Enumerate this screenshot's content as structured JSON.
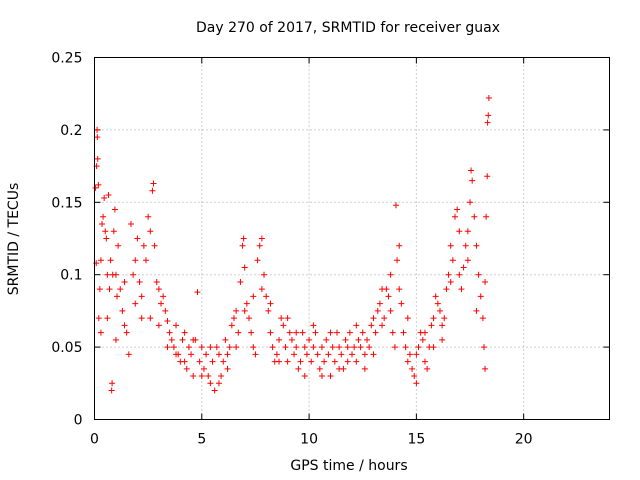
{
  "chart_data": {
    "type": "scatter",
    "title": "Day 270 of 2017, SRMTID for receiver guax",
    "xlabel": "GPS time / hours",
    "ylabel": "SRMTID / TECUs",
    "xlim": [
      0,
      24
    ],
    "ylim": [
      0,
      0.25
    ],
    "x_ticks": [
      0,
      5,
      10,
      15,
      20
    ],
    "x_tick_labels": [
      "0",
      "5",
      "10",
      "15",
      "20"
    ],
    "y_ticks": [
      0,
      0.05,
      0.1,
      0.15,
      0.2,
      0.25
    ],
    "y_tick_labels": [
      "0",
      "0.05",
      "0.1",
      "0.15",
      "0.2",
      "0.25"
    ],
    "grid": true,
    "marker": "+",
    "color": "#ff0000",
    "series": [
      {
        "name": "SRMTID",
        "points": [
          [
            0.05,
            0.16
          ],
          [
            0.08,
            0.108
          ],
          [
            0.1,
            0.175
          ],
          [
            0.12,
            0.2
          ],
          [
            0.13,
            0.195
          ],
          [
            0.15,
            0.18
          ],
          [
            0.18,
            0.162
          ],
          [
            0.2,
            0.07
          ],
          [
            0.25,
            0.09
          ],
          [
            0.3,
            0.11
          ],
          [
            0.35,
            0.135
          ],
          [
            0.4,
            0.14
          ],
          [
            0.45,
            0.153
          ],
          [
            0.5,
            0.13
          ],
          [
            0.55,
            0.125
          ],
          [
            0.6,
            0.1
          ],
          [
            0.65,
            0.155
          ],
          [
            0.7,
            0.09
          ],
          [
            0.75,
            0.11
          ],
          [
            0.8,
            0.02
          ],
          [
            0.82,
            0.025
          ],
          [
            0.85,
            0.1
          ],
          [
            0.9,
            0.13
          ],
          [
            0.95,
            0.145
          ],
          [
            1.0,
            0.1
          ],
          [
            1.05,
            0.085
          ],
          [
            1.1,
            0.12
          ],
          [
            1.2,
            0.09
          ],
          [
            1.3,
            0.075
          ],
          [
            1.4,
            0.095
          ],
          [
            1.5,
            0.06
          ],
          [
            1.6,
            0.045
          ],
          [
            1.7,
            0.135
          ],
          [
            1.8,
            0.1
          ],
          [
            1.9,
            0.11
          ],
          [
            2.0,
            0.125
          ],
          [
            2.1,
            0.095
          ],
          [
            2.2,
            0.085
          ],
          [
            2.3,
            0.12
          ],
          [
            2.4,
            0.11
          ],
          [
            2.5,
            0.14
          ],
          [
            2.6,
            0.13
          ],
          [
            2.7,
            0.158
          ],
          [
            2.75,
            0.163
          ],
          [
            2.8,
            0.12
          ],
          [
            2.9,
            0.095
          ],
          [
            3.0,
            0.09
          ],
          [
            3.1,
            0.08
          ],
          [
            3.2,
            0.085
          ],
          [
            3.3,
            0.075
          ],
          [
            3.4,
            0.068
          ],
          [
            3.5,
            0.06
          ],
          [
            3.6,
            0.055
          ],
          [
            3.7,
            0.05
          ],
          [
            3.8,
            0.065
          ],
          [
            3.9,
            0.045
          ],
          [
            4.0,
            0.04
          ],
          [
            4.1,
            0.055
          ],
          [
            4.2,
            0.06
          ],
          [
            4.3,
            0.035
          ],
          [
            4.4,
            0.05
          ],
          [
            4.5,
            0.045
          ],
          [
            4.6,
            0.03
          ],
          [
            4.7,
            0.055
          ],
          [
            4.8,
            0.088
          ],
          [
            4.9,
            0.04
          ],
          [
            5.0,
            0.05
          ],
          [
            5.1,
            0.035
          ],
          [
            5.2,
            0.045
          ],
          [
            5.3,
            0.03
          ],
          [
            5.4,
            0.025
          ],
          [
            5.5,
            0.04
          ],
          [
            5.6,
            0.02
          ],
          [
            5.7,
            0.05
          ],
          [
            5.8,
            0.045
          ],
          [
            5.9,
            0.03
          ],
          [
            6.0,
            0.04
          ],
          [
            6.1,
            0.055
          ],
          [
            6.2,
            0.035
          ],
          [
            6.3,
            0.05
          ],
          [
            6.4,
            0.065
          ],
          [
            6.5,
            0.07
          ],
          [
            6.6,
            0.075
          ],
          [
            6.7,
            0.06
          ],
          [
            6.8,
            0.095
          ],
          [
            6.9,
            0.12
          ],
          [
            6.95,
            0.125
          ],
          [
            7.0,
            0.105
          ],
          [
            7.1,
            0.08
          ],
          [
            7.2,
            0.07
          ],
          [
            7.3,
            0.06
          ],
          [
            7.4,
            0.05
          ],
          [
            7.5,
            0.045
          ],
          [
            7.6,
            0.11
          ],
          [
            7.7,
            0.12
          ],
          [
            7.8,
            0.125
          ],
          [
            7.9,
            0.1
          ],
          [
            8.0,
            0.085
          ],
          [
            8.1,
            0.075
          ],
          [
            8.2,
            0.06
          ],
          [
            8.3,
            0.05
          ],
          [
            8.4,
            0.04
          ],
          [
            8.5,
            0.045
          ],
          [
            8.6,
            0.055
          ],
          [
            8.7,
            0.07
          ],
          [
            8.8,
            0.065
          ],
          [
            8.9,
            0.05
          ],
          [
            9.0,
            0.04
          ],
          [
            9.1,
            0.06
          ],
          [
            9.2,
            0.055
          ],
          [
            9.3,
            0.045
          ],
          [
            9.4,
            0.05
          ],
          [
            9.5,
            0.035
          ],
          [
            9.6,
            0.04
          ],
          [
            9.7,
            0.06
          ],
          [
            9.8,
            0.05
          ],
          [
            9.9,
            0.045
          ],
          [
            10.0,
            0.055
          ],
          [
            10.1,
            0.04
          ],
          [
            10.2,
            0.05
          ],
          [
            10.3,
            0.06
          ],
          [
            10.4,
            0.045
          ],
          [
            10.5,
            0.035
          ],
          [
            10.6,
            0.05
          ],
          [
            10.7,
            0.04
          ],
          [
            10.8,
            0.055
          ],
          [
            10.9,
            0.045
          ],
          [
            11.0,
            0.03
          ],
          [
            11.1,
            0.05
          ],
          [
            11.2,
            0.04
          ],
          [
            11.3,
            0.06
          ],
          [
            11.4,
            0.05
          ],
          [
            11.5,
            0.045
          ],
          [
            11.6,
            0.035
          ],
          [
            11.7,
            0.055
          ],
          [
            11.8,
            0.04
          ],
          [
            11.9,
            0.06
          ],
          [
            12.0,
            0.045
          ],
          [
            12.1,
            0.05
          ],
          [
            12.2,
            0.04
          ],
          [
            12.3,
            0.055
          ],
          [
            12.4,
            0.05
          ],
          [
            12.5,
            0.06
          ],
          [
            12.6,
            0.045
          ],
          [
            12.7,
            0.055
          ],
          [
            12.8,
            0.05
          ],
          [
            12.9,
            0.065
          ],
          [
            13.0,
            0.07
          ],
          [
            13.1,
            0.06
          ],
          [
            13.2,
            0.075
          ],
          [
            13.3,
            0.08
          ],
          [
            13.4,
            0.065
          ],
          [
            13.5,
            0.07
          ],
          [
            13.6,
            0.09
          ],
          [
            13.7,
            0.085
          ],
          [
            13.8,
            0.075
          ],
          [
            13.9,
            0.06
          ],
          [
            14.0,
            0.05
          ],
          [
            14.05,
            0.148
          ],
          [
            14.1,
            0.11
          ],
          [
            14.2,
            0.12
          ],
          [
            14.3,
            0.08
          ],
          [
            14.4,
            0.06
          ],
          [
            14.5,
            0.05
          ],
          [
            14.6,
            0.04
          ],
          [
            14.7,
            0.045
          ],
          [
            14.8,
            0.035
          ],
          [
            14.9,
            0.03
          ],
          [
            15.0,
            0.045
          ],
          [
            15.1,
            0.05
          ],
          [
            15.2,
            0.06
          ],
          [
            15.3,
            0.055
          ],
          [
            15.4,
            0.04
          ],
          [
            15.5,
            0.035
          ],
          [
            15.6,
            0.05
          ],
          [
            15.7,
            0.065
          ],
          [
            15.8,
            0.07
          ],
          [
            15.9,
            0.085
          ],
          [
            16.0,
            0.08
          ],
          [
            16.1,
            0.075
          ],
          [
            16.2,
            0.065
          ],
          [
            16.3,
            0.07
          ],
          [
            16.4,
            0.09
          ],
          [
            16.5,
            0.1
          ],
          [
            16.6,
            0.095
          ],
          [
            16.7,
            0.11
          ],
          [
            16.8,
            0.14
          ],
          [
            16.9,
            0.145
          ],
          [
            17.0,
            0.1
          ],
          [
            17.1,
            0.09
          ],
          [
            17.2,
            0.105
          ],
          [
            17.3,
            0.12
          ],
          [
            17.4,
            0.13
          ],
          [
            17.5,
            0.15
          ],
          [
            17.55,
            0.172
          ],
          [
            17.6,
            0.165
          ],
          [
            17.7,
            0.14
          ],
          [
            17.8,
            0.12
          ],
          [
            17.9,
            0.1
          ],
          [
            18.0,
            0.085
          ],
          [
            18.1,
            0.07
          ],
          [
            18.15,
            0.05
          ],
          [
            18.2,
            0.035
          ],
          [
            18.25,
            0.14
          ],
          [
            18.3,
            0.168
          ],
          [
            18.32,
            0.205
          ],
          [
            18.35,
            0.21
          ],
          [
            18.38,
            0.222
          ],
          [
            0.3,
            0.06
          ],
          [
            0.6,
            0.07
          ],
          [
            1.0,
            0.055
          ],
          [
            1.4,
            0.065
          ],
          [
            1.9,
            0.08
          ],
          [
            2.2,
            0.07
          ],
          [
            2.6,
            0.07
          ],
          [
            3.0,
            0.065
          ],
          [
            3.4,
            0.05
          ],
          [
            3.8,
            0.045
          ],
          [
            4.2,
            0.04
          ],
          [
            4.6,
            0.055
          ],
          [
            5.0,
            0.03
          ],
          [
            5.4,
            0.05
          ],
          [
            5.8,
            0.025
          ],
          [
            6.2,
            0.045
          ],
          [
            6.6,
            0.05
          ],
          [
            7.0,
            0.075
          ],
          [
            7.4,
            0.085
          ],
          [
            7.8,
            0.09
          ],
          [
            8.2,
            0.08
          ],
          [
            8.6,
            0.04
          ],
          [
            9.0,
            0.07
          ],
          [
            9.4,
            0.06
          ],
          [
            9.8,
            0.03
          ],
          [
            10.2,
            0.065
          ],
          [
            10.6,
            0.03
          ],
          [
            11.0,
            0.06
          ],
          [
            11.4,
            0.035
          ],
          [
            11.8,
            0.05
          ],
          [
            12.2,
            0.065
          ],
          [
            12.6,
            0.035
          ],
          [
            13.0,
            0.045
          ],
          [
            13.4,
            0.09
          ],
          [
            13.8,
            0.1
          ],
          [
            14.2,
            0.09
          ],
          [
            14.6,
            0.07
          ],
          [
            15.0,
            0.025
          ],
          [
            15.4,
            0.06
          ],
          [
            15.8,
            0.05
          ],
          [
            16.2,
            0.055
          ],
          [
            16.6,
            0.12
          ],
          [
            17.0,
            0.13
          ],
          [
            17.4,
            0.11
          ],
          [
            17.8,
            0.075
          ],
          [
            18.2,
            0.095
          ]
        ]
      }
    ]
  }
}
